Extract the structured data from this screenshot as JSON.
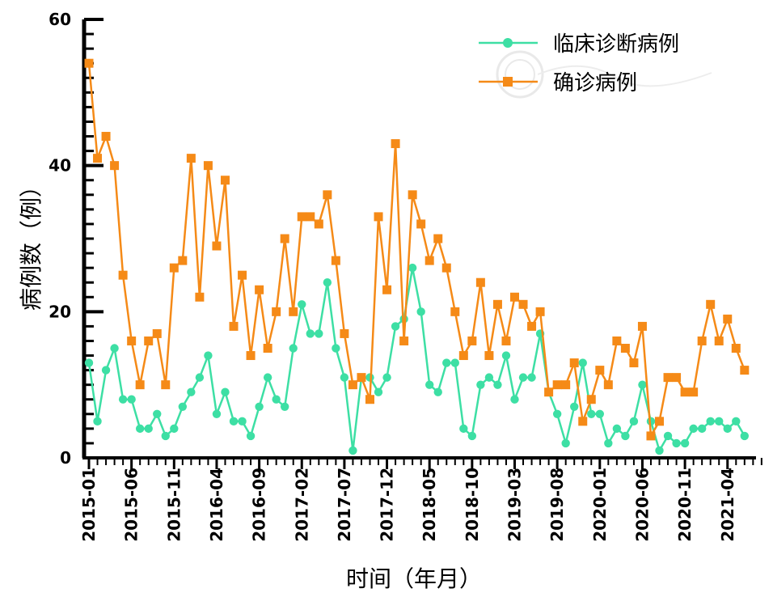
{
  "chart_data": {
    "type": "line",
    "xlabel": "时间（年月）",
    "ylabel": "病例数（例）",
    "ylim": [
      0,
      60
    ],
    "yticks": [
      0,
      20,
      40,
      60
    ],
    "x_start": "2015-01",
    "x_tick_labels": [
      "2015-01",
      "2015-06",
      "2015-11",
      "2016-04",
      "2016-09",
      "2017-02",
      "2017-07",
      "2017-12",
      "2018-05",
      "2018-10",
      "2019-03",
      "2019-08",
      "2020-01",
      "2020-06",
      "2020-11",
      "2021-04"
    ],
    "legend_position": "top-right",
    "grid": false,
    "x": [
      "2015-01",
      "2015-02",
      "2015-03",
      "2015-04",
      "2015-05",
      "2015-06",
      "2015-07",
      "2015-08",
      "2015-09",
      "2015-10",
      "2015-11",
      "2015-12",
      "2016-01",
      "2016-02",
      "2016-03",
      "2016-04",
      "2016-05",
      "2016-06",
      "2016-07",
      "2016-08",
      "2016-09",
      "2016-10",
      "2016-11",
      "2016-12",
      "2017-01",
      "2017-02",
      "2017-03",
      "2017-04",
      "2017-05",
      "2017-06",
      "2017-07",
      "2017-08",
      "2017-09",
      "2017-10",
      "2017-11",
      "2017-12",
      "2018-01",
      "2018-02",
      "2018-03",
      "2018-04",
      "2018-05",
      "2018-06",
      "2018-07",
      "2018-08",
      "2018-09",
      "2018-10",
      "2018-11",
      "2018-12",
      "2019-01",
      "2019-02",
      "2019-03",
      "2019-04",
      "2019-05",
      "2019-06",
      "2019-07",
      "2019-08",
      "2019-09",
      "2019-10",
      "2019-11",
      "2019-12",
      "2020-01",
      "2020-02",
      "2020-03",
      "2020-04",
      "2020-05",
      "2020-06",
      "2020-07",
      "2020-08",
      "2020-09",
      "2020-10",
      "2020-11",
      "2020-12",
      "2021-01",
      "2021-02",
      "2021-03",
      "2021-04",
      "2021-05",
      "2021-06",
      "2021-07",
      "2021-08"
    ],
    "series": [
      {
        "name": "临床诊断病例",
        "color": "#3ddfa4",
        "marker": "circle",
        "values": [
          13,
          5,
          12,
          15,
          8,
          8,
          4,
          4,
          6,
          3,
          4,
          7,
          9,
          11,
          14,
          6,
          9,
          5,
          5,
          3,
          7,
          11,
          8,
          7,
          15,
          21,
          17,
          17,
          24,
          15,
          11,
          1,
          11,
          11,
          9,
          11,
          18,
          19,
          26,
          20,
          10,
          9,
          13,
          13,
          4,
          3,
          10,
          11,
          10,
          14,
          8,
          11,
          11,
          17,
          9,
          6,
          2,
          7,
          13,
          6,
          6,
          2,
          4,
          3,
          5,
          10,
          5,
          1,
          3,
          2,
          2,
          4,
          4,
          5,
          5,
          4,
          5,
          3,
          null,
          null
        ]
      },
      {
        "name": "确诊病例",
        "color": "#f58a17",
        "marker": "square",
        "values": [
          54,
          41,
          44,
          40,
          25,
          16,
          10,
          16,
          17,
          10,
          26,
          27,
          41,
          22,
          40,
          29,
          38,
          18,
          25,
          14,
          23,
          15,
          20,
          30,
          20,
          33,
          33,
          32,
          36,
          27,
          17,
          10,
          11,
          8,
          33,
          23,
          43,
          16,
          36,
          32,
          27,
          30,
          26,
          20,
          14,
          16,
          24,
          14,
          21,
          16,
          22,
          21,
          18,
          20,
          9,
          10,
          10,
          13,
          5,
          8,
          12,
          10,
          16,
          15,
          13,
          18,
          3,
          5,
          11,
          11,
          9,
          9,
          16,
          21,
          16,
          19,
          15,
          12,
          null,
          null
        ]
      }
    ]
  }
}
